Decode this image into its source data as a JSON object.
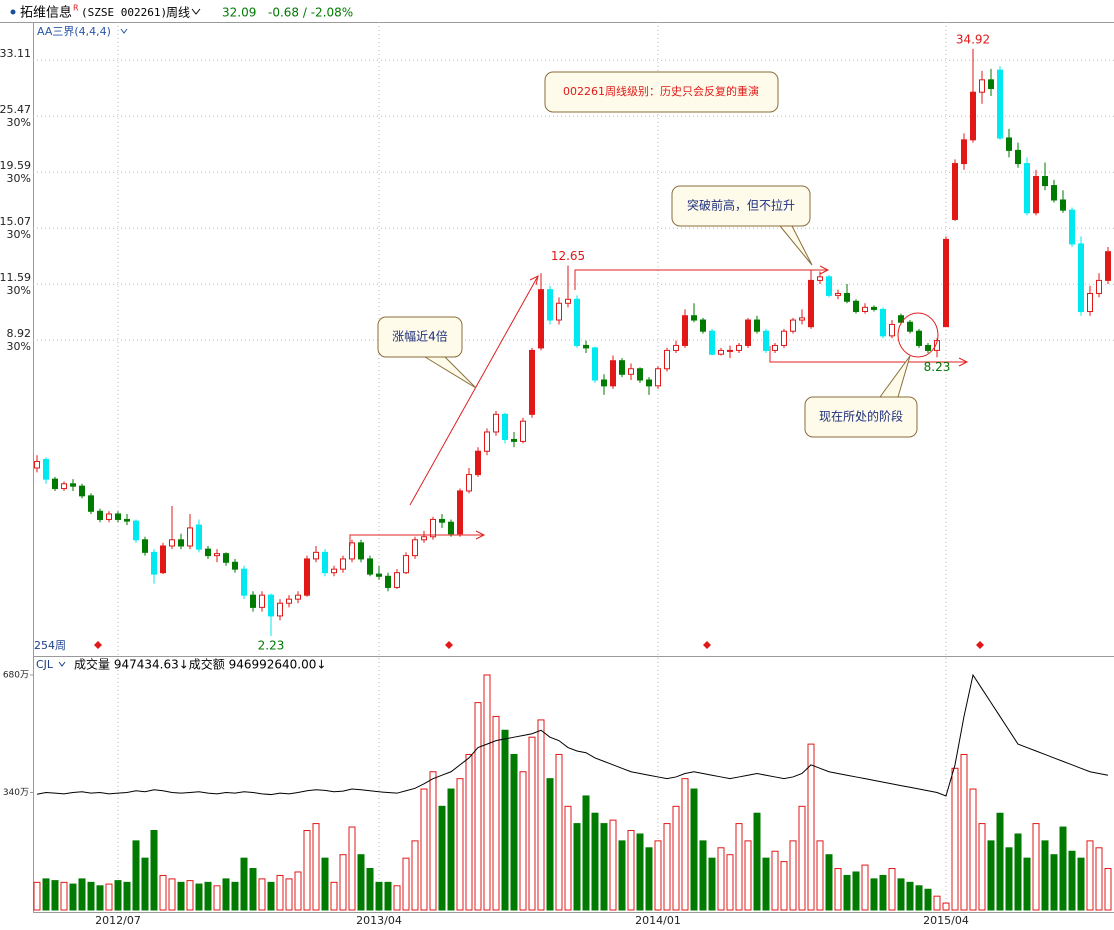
{
  "header": {
    "name": "拓维信息",
    "mark": "R",
    "code": "(SZSE 002261)",
    "period": "周线",
    "price": 32.09,
    "change": "-0.68 / -2.08%",
    "indicator": "AA三界(4,4,4)",
    "weeks": "254周"
  },
  "annotations": [
    "002261周线级别：历史只会反复的重演",
    "突破前高，但不拉升",
    "涨幅近4倍",
    "现在所处的阶段"
  ],
  "chart_data": {
    "type": "candlestick",
    "log_scale": true,
    "grid": true,
    "up_color": "#e01818",
    "down_color": "#007a00",
    "drop_color": "#00e8f0",
    "ylim": [
      2.04,
      39.6
    ],
    "yticks": [
      8.92,
      11.59,
      15.07,
      19.59,
      25.47,
      33.11
    ],
    "ytick_step_label": "30%",
    "categories": [
      null,
      null,
      null,
      null,
      null,
      null,
      null,
      null,
      null,
      "2012/07",
      null,
      null,
      null,
      null,
      null,
      null,
      null,
      null,
      null,
      null,
      null,
      null,
      null,
      null,
      null,
      null,
      null,
      null,
      null,
      null,
      null,
      null,
      null,
      null,
      null,
      null,
      null,
      null,
      "2013/04",
      null,
      null,
      null,
      null,
      null,
      null,
      null,
      null,
      null,
      null,
      null,
      null,
      null,
      null,
      null,
      null,
      null,
      null,
      null,
      null,
      null,
      null,
      null,
      null,
      null,
      null,
      null,
      null,
      null,
      null,
      "2014/01",
      null,
      null,
      null,
      null,
      null,
      null,
      null,
      null,
      null,
      null,
      null,
      null,
      null,
      null,
      null,
      null,
      null,
      null,
      null,
      null,
      null,
      null,
      null,
      null,
      null,
      null,
      null,
      null,
      null,
      null,
      null,
      "2015/04",
      null,
      null,
      null,
      null,
      null,
      null,
      null,
      null,
      null,
      null,
      null,
      null,
      null,
      null,
      null,
      null,
      null,
      null,
      null
    ],
    "candles": [
      [
        4.9,
        5.2,
        4.8,
        5.05
      ],
      [
        5.1,
        5.15,
        4.55,
        4.65
      ],
      [
        4.65,
        4.7,
        4.4,
        4.45
      ],
      [
        4.45,
        4.6,
        4.4,
        4.55
      ],
      [
        4.55,
        4.65,
        4.4,
        4.5
      ],
      [
        4.5,
        4.55,
        4.25,
        4.3
      ],
      [
        4.3,
        4.35,
        3.95,
        4.0
      ],
      [
        4.0,
        4.05,
        3.8,
        3.85
      ],
      [
        3.85,
        4.0,
        3.8,
        3.95
      ],
      [
        3.95,
        4.0,
        3.8,
        3.85
      ],
      [
        3.85,
        3.95,
        3.75,
        3.82
      ],
      [
        3.82,
        3.85,
        3.45,
        3.5
      ],
      [
        3.5,
        3.55,
        3.25,
        3.3
      ],
      [
        3.3,
        3.35,
        2.85,
        2.98
      ],
      [
        3.0,
        3.45,
        2.98,
        3.4
      ],
      [
        3.4,
        4.1,
        3.35,
        3.5
      ],
      [
        3.5,
        3.6,
        3.35,
        3.4
      ],
      [
        3.4,
        3.95,
        3.35,
        3.7
      ],
      [
        3.75,
        3.85,
        3.3,
        3.35
      ],
      [
        3.35,
        3.4,
        3.2,
        3.25
      ],
      [
        3.25,
        3.35,
        3.15,
        3.28
      ],
      [
        3.28,
        3.3,
        3.1,
        3.15
      ],
      [
        3.15,
        3.2,
        3.0,
        3.05
      ],
      [
        3.05,
        3.1,
        2.65,
        2.7
      ],
      [
        2.7,
        2.75,
        2.5,
        2.55
      ],
      [
        2.55,
        2.75,
        2.5,
        2.7
      ],
      [
        2.7,
        2.72,
        2.23,
        2.45
      ],
      [
        2.45,
        2.65,
        2.4,
        2.6
      ],
      [
        2.6,
        2.7,
        2.55,
        2.65
      ],
      [
        2.65,
        2.75,
        2.6,
        2.7
      ],
      [
        2.7,
        3.25,
        2.68,
        3.2
      ],
      [
        3.2,
        3.4,
        3.15,
        3.3
      ],
      [
        3.3,
        3.35,
        2.95,
        3.0
      ],
      [
        3.0,
        3.1,
        2.95,
        3.05
      ],
      [
        3.05,
        3.25,
        3.0,
        3.2
      ],
      [
        3.2,
        3.5,
        3.15,
        3.45
      ],
      [
        3.45,
        3.5,
        3.15,
        3.2
      ],
      [
        3.2,
        3.25,
        2.95,
        2.98
      ],
      [
        2.98,
        3.1,
        2.9,
        2.95
      ],
      [
        2.95,
        3.0,
        2.75,
        2.8
      ],
      [
        2.8,
        3.05,
        2.78,
        3.0
      ],
      [
        3.0,
        3.3,
        2.98,
        3.25
      ],
      [
        3.25,
        3.55,
        3.2,
        3.5
      ],
      [
        3.5,
        3.65,
        3.45,
        3.55
      ],
      [
        3.55,
        3.9,
        3.5,
        3.85
      ],
      [
        3.85,
        3.95,
        3.7,
        3.8
      ],
      [
        3.8,
        3.85,
        3.55,
        3.6
      ],
      [
        3.6,
        4.45,
        3.55,
        4.4
      ],
      [
        4.4,
        4.9,
        4.35,
        4.75
      ],
      [
        4.75,
        5.4,
        4.7,
        5.3
      ],
      [
        5.3,
        5.9,
        5.2,
        5.8
      ],
      [
        5.8,
        6.4,
        5.7,
        6.3
      ],
      [
        6.3,
        6.35,
        5.5,
        5.6
      ],
      [
        5.6,
        5.8,
        5.4,
        5.55
      ],
      [
        5.55,
        6.2,
        5.5,
        6.1
      ],
      [
        6.3,
        8.6,
        6.2,
        8.5
      ],
      [
        8.6,
        12.2,
        8.5,
        11.3
      ],
      [
        11.3,
        11.5,
        9.6,
        9.8
      ],
      [
        9.8,
        10.9,
        9.6,
        10.6
      ],
      [
        10.6,
        12.65,
        10.4,
        10.8
      ],
      [
        10.8,
        11.0,
        8.6,
        8.7
      ],
      [
        8.7,
        8.9,
        8.4,
        8.6
      ],
      [
        8.6,
        8.65,
        7.3,
        7.4
      ],
      [
        7.4,
        7.6,
        6.9,
        7.2
      ],
      [
        7.2,
        8.3,
        7.1,
        8.1
      ],
      [
        8.1,
        8.2,
        7.5,
        7.6
      ],
      [
        7.6,
        8.0,
        7.4,
        7.8
      ],
      [
        7.8,
        7.85,
        7.3,
        7.4
      ],
      [
        7.4,
        7.5,
        6.9,
        7.2
      ],
      [
        7.2,
        7.9,
        7.1,
        7.8
      ],
      [
        7.8,
        8.6,
        7.7,
        8.5
      ],
      [
        8.5,
        8.9,
        8.4,
        8.7
      ],
      [
        8.7,
        10.3,
        8.6,
        10.0
      ],
      [
        10.0,
        10.6,
        9.7,
        9.8
      ],
      [
        9.8,
        9.9,
        9.2,
        9.3
      ],
      [
        9.3,
        9.4,
        8.3,
        8.35
      ],
      [
        8.35,
        8.6,
        8.3,
        8.5
      ],
      [
        8.5,
        8.7,
        8.2,
        8.5
      ],
      [
        8.5,
        8.8,
        8.4,
        8.7
      ],
      [
        8.7,
        9.9,
        8.6,
        9.8
      ],
      [
        9.8,
        10.0,
        9.2,
        9.3
      ],
      [
        9.3,
        9.4,
        8.4,
        8.5
      ],
      [
        8.5,
        8.8,
        8.4,
        8.7
      ],
      [
        8.7,
        9.4,
        8.6,
        9.3
      ],
      [
        9.3,
        9.9,
        9.2,
        9.8
      ],
      [
        9.8,
        10.3,
        9.6,
        9.9
      ],
      [
        9.5,
        12.4,
        9.4,
        11.8
      ],
      [
        11.8,
        12.3,
        11.6,
        12.0
      ],
      [
        12.0,
        12.1,
        10.9,
        11.0
      ],
      [
        11.0,
        11.3,
        10.8,
        11.1
      ],
      [
        11.1,
        11.6,
        10.6,
        10.7
      ],
      [
        10.7,
        10.8,
        10.1,
        10.2
      ],
      [
        10.2,
        10.6,
        10.1,
        10.4
      ],
      [
        10.4,
        10.5,
        10.2,
        10.3
      ],
      [
        10.3,
        10.4,
        9.0,
        9.1
      ],
      [
        9.1,
        9.8,
        9.0,
        9.6
      ],
      [
        10.0,
        10.1,
        9.6,
        9.7
      ],
      [
        9.7,
        9.8,
        9.2,
        9.3
      ],
      [
        9.3,
        9.4,
        8.6,
        8.7
      ],
      [
        8.7,
        8.8,
        8.4,
        8.5
      ],
      [
        8.5,
        9.0,
        8.23,
        8.9
      ],
      [
        9.5,
        14.5,
        9.5,
        14.3
      ],
      [
        15.7,
        20.8,
        15.6,
        20.4
      ],
      [
        20.4,
        23.5,
        19.8,
        22.8
      ],
      [
        22.8,
        34.92,
        22.5,
        28.5
      ],
      [
        28.5,
        31.5,
        27.0,
        30.2
      ],
      [
        30.2,
        31.8,
        28.0,
        29.0
      ],
      [
        31.6,
        32.2,
        22.8,
        23.0
      ],
      [
        23.0,
        24.0,
        21.0,
        21.7
      ],
      [
        21.7,
        22.5,
        20.0,
        20.4
      ],
      [
        20.4,
        21.0,
        16.0,
        16.2
      ],
      [
        16.2,
        19.8,
        16.0,
        19.2
      ],
      [
        19.2,
        20.5,
        18.0,
        18.4
      ],
      [
        18.4,
        18.9,
        17.0,
        17.2
      ],
      [
        17.2,
        18.0,
        16.2,
        16.4
      ],
      [
        16.4,
        16.6,
        13.8,
        14.0
      ],
      [
        14.0,
        14.5,
        10.0,
        10.2
      ],
      [
        10.2,
        11.5,
        10.0,
        11.1
      ],
      [
        11.1,
        12.2,
        10.9,
        11.8
      ],
      [
        11.8,
        13.8,
        11.6,
        13.5
      ]
    ],
    "volume": {
      "type": "bar",
      "label": "CJL",
      "legend": "成交量 947434.63↓成交额 946992640.00↓",
      "ma_color": "#000000",
      "ylim": [
        0,
        732
      ],
      "yticks": [
        {
          "value": 340,
          "label": "340万"
        },
        {
          "value": 680,
          "label": "680万"
        }
      ],
      "values": [
        80,
        90,
        85,
        80,
        75,
        90,
        80,
        70,
        75,
        85,
        80,
        200,
        150,
        230,
        100,
        90,
        80,
        85,
        75,
        80,
        70,
        90,
        80,
        150,
        120,
        90,
        80,
        100,
        90,
        110,
        230,
        250,
        150,
        80,
        160,
        240,
        160,
        120,
        80,
        80,
        70,
        150,
        200,
        350,
        400,
        300,
        350,
        380,
        450,
        600,
        680,
        560,
        520,
        450,
        400,
        500,
        550,
        380,
        450,
        300,
        250,
        330,
        280,
        250,
        260,
        200,
        230,
        220,
        180,
        200,
        250,
        300,
        380,
        350,
        200,
        150,
        180,
        160,
        250,
        200,
        280,
        150,
        170,
        140,
        200,
        300,
        480,
        200,
        160,
        120,
        100,
        110,
        130,
        90,
        100,
        120,
        90,
        80,
        70,
        60,
        40,
        20,
        410,
        450,
        350,
        250,
        200,
        280,
        180,
        220,
        150,
        250,
        200,
        160,
        240,
        170,
        150,
        200,
        180,
        120
      ],
      "ma": [
        335,
        340,
        338,
        336,
        340,
        342,
        338,
        340,
        336,
        338,
        340,
        345,
        342,
        348,
        345,
        340,
        338,
        340,
        342,
        338,
        336,
        340,
        338,
        342,
        340,
        336,
        334,
        338,
        336,
        340,
        345,
        348,
        346,
        342,
        344,
        350,
        348,
        345,
        342,
        340,
        338,
        345,
        352,
        365,
        380,
        390,
        400,
        420,
        440,
        470,
        480,
        490,
        495,
        500,
        505,
        510,
        520,
        500,
        490,
        470,
        460,
        455,
        440,
        430,
        420,
        410,
        400,
        395,
        390,
        385,
        380,
        385,
        395,
        400,
        395,
        390,
        385,
        380,
        385,
        390,
        395,
        390,
        385,
        380,
        385,
        395,
        420,
        410,
        400,
        395,
        390,
        385,
        380,
        375,
        370,
        365,
        360,
        355,
        350,
        345,
        340,
        330,
        420,
        560,
        680,
        640,
        600,
        560,
        520,
        480,
        470,
        460,
        450,
        440,
        430,
        420,
        410,
        400,
        395,
        390
      ]
    }
  }
}
